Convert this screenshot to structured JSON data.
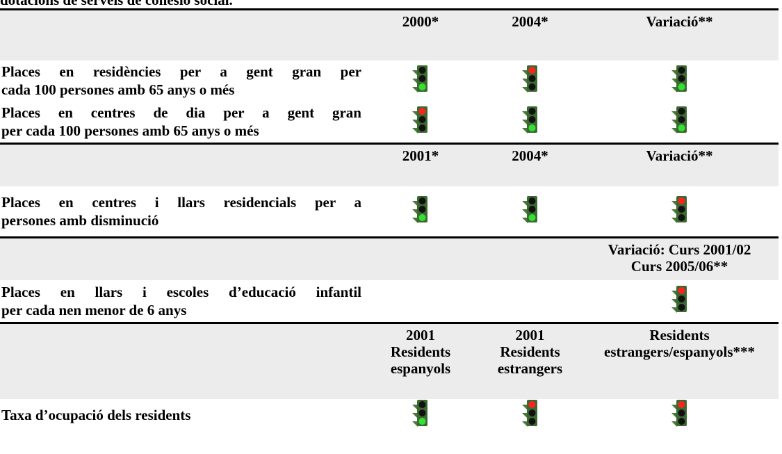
{
  "title": "dotacions de serveis de cohesió social.",
  "sections": [
    {
      "header": [
        [
          "2000*"
        ],
        [
          "2004*"
        ],
        [
          "Variació**"
        ]
      ],
      "rows": [
        {
          "label": [
            "Places en residències per a gent gran per",
            "cada 100 persones amb 65 anys o més"
          ],
          "lights": [
            "#33e033",
            "#ff2020",
            "#33e033"
          ]
        },
        {
          "label": [
            "Places en centres de dia per a gent gran",
            "per cada 100 persones amb 65 anys o més"
          ],
          "lights": [
            "#ff2020",
            "#33e033",
            "#33e033"
          ]
        }
      ]
    },
    {
      "header": [
        [
          "2001*"
        ],
        [
          "2004*"
        ],
        [
          "Variació**"
        ]
      ],
      "rows": [
        {
          "label": [
            "Places en centres i llars residencials per a",
            "persones amb disminució"
          ],
          "lights": [
            "#33e033",
            "#33e033",
            "#ff2020"
          ]
        }
      ]
    },
    {
      "header": [
        [],
        [],
        [
          "Variació: Curs 2001/02",
          "Curs 2005/06**"
        ]
      ],
      "rows": [
        {
          "label": [
            "Places en llars i escoles d’educació infantil",
            "per cada nen menor de 6 anys"
          ],
          "lights": [
            null,
            null,
            "#ff2020"
          ]
        }
      ]
    },
    {
      "header": [
        [
          "2001",
          "Residents",
          "espanyols"
        ],
        [
          "2001",
          "Residents",
          "estrangers"
        ],
        [
          "Residents",
          "estrangers/espanyols***"
        ]
      ],
      "rows": [
        {
          "label": [
            "Taxa d’ocupació dels residents"
          ],
          "lights": [
            "#33e033",
            "#ff2020",
            "#ff2020"
          ]
        }
      ]
    }
  ]
}
